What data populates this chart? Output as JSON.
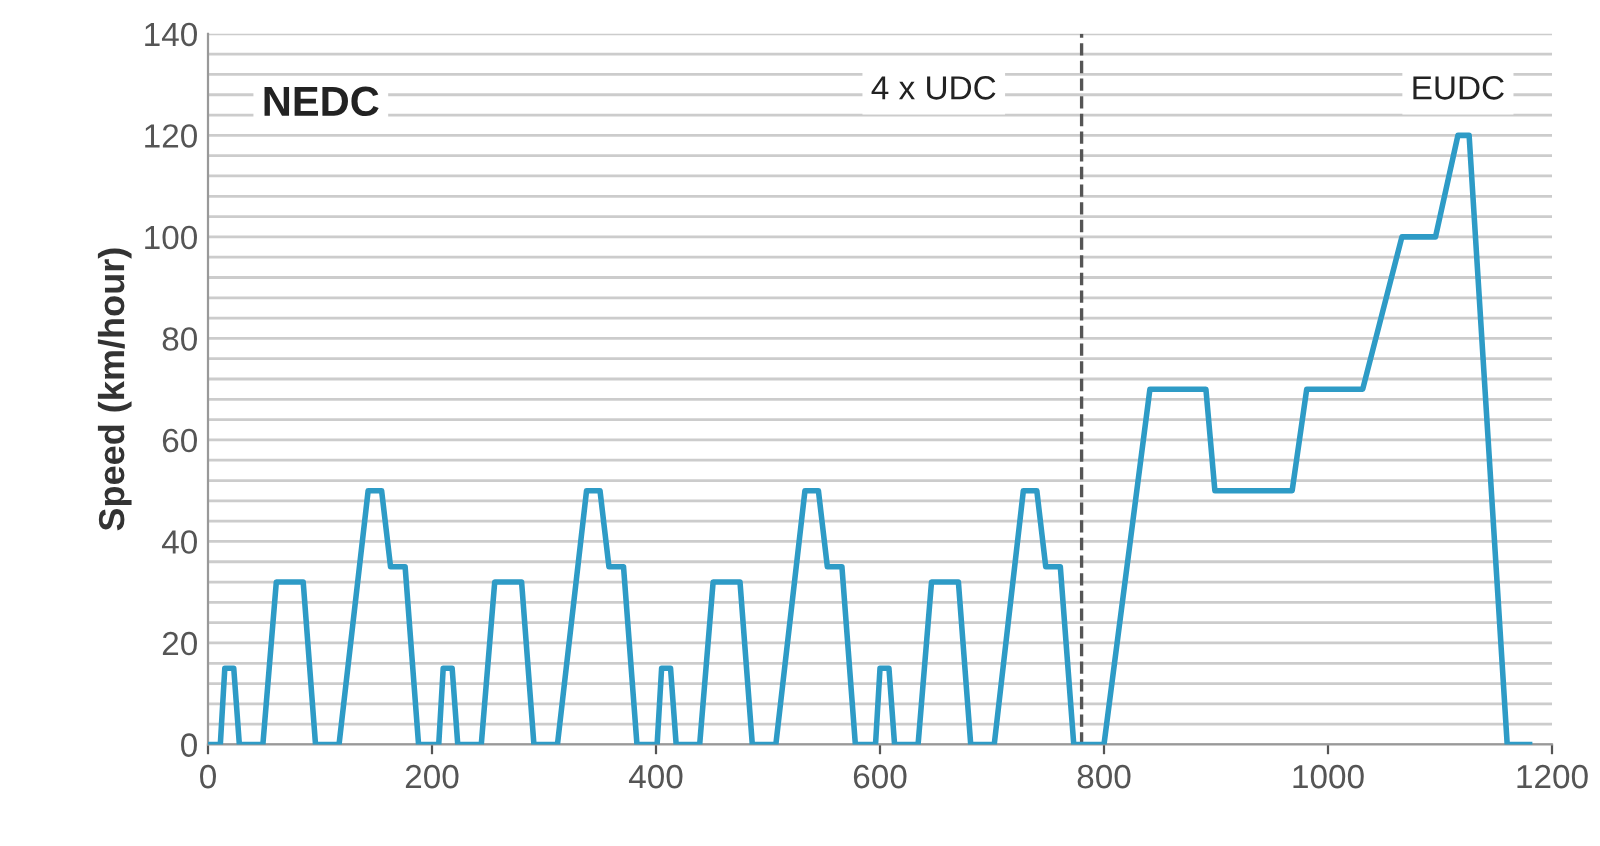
{
  "chart_data": {
    "type": "line",
    "ylabel": "Speed (km/hour)",
    "annotations": [
      "NEDC",
      "4 x UDC",
      "EUDC"
    ],
    "x": [
      0,
      11,
      15,
      23,
      28,
      49,
      61,
      85,
      96,
      117,
      143,
      155,
      163,
      176,
      188,
      195,
      206,
      210,
      218,
      223,
      244,
      256,
      280,
      291,
      312,
      338,
      350,
      358,
      371,
      383,
      390,
      401,
      405,
      413,
      418,
      439,
      451,
      475,
      486,
      507,
      533,
      545,
      553,
      566,
      578,
      585,
      596,
      600,
      608,
      613,
      634,
      646,
      670,
      681,
      702,
      728,
      740,
      748,
      761,
      773,
      780,
      800,
      841,
      891,
      899,
      968,
      981,
      1031,
      1066,
      1096,
      1116,
      1126,
      1160,
      1180
    ],
    "series": [
      {
        "color": "#2e9bc6",
        "values": [
          0,
          0,
          15,
          15,
          0,
          0,
          32,
          32,
          0,
          0,
          50,
          50,
          35,
          35,
          0,
          0,
          0,
          15,
          15,
          0,
          0,
          32,
          32,
          0,
          0,
          50,
          50,
          35,
          35,
          0,
          0,
          0,
          15,
          15,
          0,
          0,
          32,
          32,
          0,
          0,
          50,
          50,
          35,
          35,
          0,
          0,
          0,
          15,
          15,
          0,
          0,
          32,
          32,
          0,
          0,
          50,
          50,
          35,
          35,
          0,
          0,
          0,
          70,
          70,
          50,
          50,
          70,
          70,
          100,
          100,
          120,
          120,
          0,
          0
        ]
      }
    ],
    "ref_lines": [
      {
        "axis": "x",
        "value": 780,
        "line_style": "dashed",
        "color": "#555555"
      }
    ],
    "xlim": [
      0,
      1200
    ],
    "xticks": [
      0,
      200,
      400,
      600,
      800,
      1000,
      1200
    ],
    "ylim": [
      0,
      140
    ],
    "yticks": [
      0,
      {
        "value": 4,
        "label": null
      },
      {
        "value": 8,
        "label": null
      },
      {
        "value": 12,
        "label": null
      },
      {
        "value": 16,
        "label": null
      },
      20,
      {
        "value": 24,
        "label": null
      },
      {
        "value": 28,
        "label": null
      },
      {
        "value": 32,
        "label": null
      },
      {
        "value": 36,
        "label": null
      },
      40,
      {
        "value": 44,
        "label": null
      },
      {
        "value": 48,
        "label": null
      },
      {
        "value": 52,
        "label": null
      },
      {
        "value": 56,
        "label": null
      },
      60,
      {
        "value": 64,
        "label": null
      },
      {
        "value": 68,
        "label": null
      },
      {
        "value": 72,
        "label": null
      },
      {
        "value": 76,
        "label": null
      },
      80,
      {
        "value": 84,
        "label": null
      },
      {
        "value": 88,
        "label": null
      },
      {
        "value": 92,
        "label": null
      },
      {
        "value": 96,
        "label": null
      },
      100,
      {
        "value": 104,
        "label": null
      },
      {
        "value": 108,
        "label": null
      },
      {
        "value": 112,
        "label": null
      },
      {
        "value": 116,
        "label": null
      },
      120,
      {
        "value": 124,
        "label": null
      },
      {
        "value": 128,
        "label": null
      },
      {
        "value": 132,
        "label": null
      },
      {
        "value": 136,
        "label": null
      },
      140
    ],
    "grid": "y",
    "marker": "none",
    "line_style": "solid",
    "legend": false
  }
}
